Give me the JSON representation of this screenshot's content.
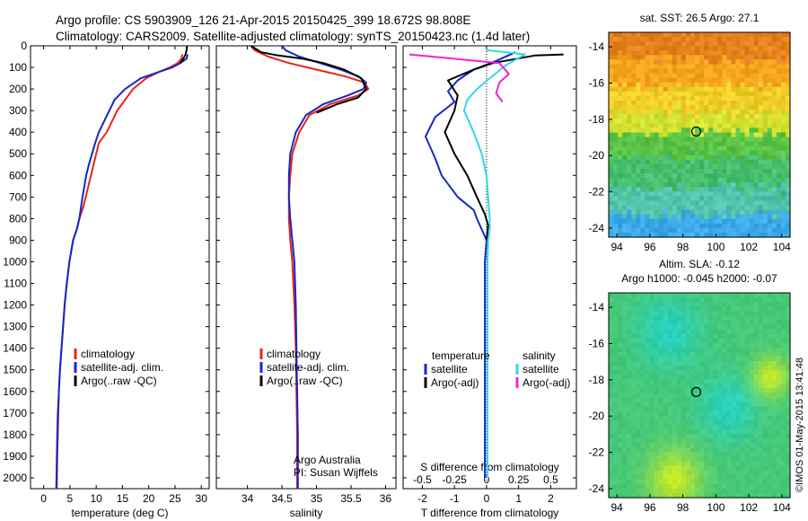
{
  "header": {
    "line1": "Argo profile: CS 5903909_126 21-Apr-2015 20150425_399 18.672S 98.808E",
    "line2": "Climatology: CARS2009. Satellite-adjusted climatology: synTS_20150423.nc (1.4d later)"
  },
  "footer_stamp": "©IMOS 01-May-2015 13:41:48",
  "colors": {
    "clim": "#e8231a",
    "sat": "#1428c8",
    "argo": "#000000",
    "sal_sat": "#33d6ea",
    "sal_argo": "#ee22dd"
  },
  "chart_data": [
    {
      "type": "line",
      "id": "temperature",
      "xlabel": "temperature (deg C)",
      "ylabel": "",
      "xlim": [
        -2.5,
        31.5
      ],
      "ylim": [
        2050,
        0
      ],
      "xticks": [
        0,
        5,
        10,
        15,
        20,
        25,
        30
      ],
      "yticks": [
        0,
        100,
        200,
        300,
        400,
        500,
        600,
        700,
        800,
        900,
        1000,
        1100,
        1200,
        1300,
        1400,
        1500,
        1600,
        1700,
        1800,
        1900,
        2000
      ],
      "legend": [
        "climatology",
        "satellite-adj. clim.",
        "Argo(..raw -QC)"
      ],
      "series": [
        {
          "name": "climatology",
          "color": "#e8231a",
          "x": [
            26.4,
            26.2,
            25.5,
            24,
            22,
            19.5,
            17,
            15.5,
            14,
            13,
            12,
            10.5,
            10,
            9.5,
            9,
            8.5,
            8,
            7.5,
            6.8,
            6.3,
            5.6,
            4.9,
            4.4,
            4,
            3.7,
            3.4,
            3.1,
            2.9,
            2.8,
            2.7,
            2.6,
            2.5
          ],
          "y": [
            40,
            60,
            80,
            100,
            120,
            150,
            200,
            250,
            300,
            350,
            400,
            450,
            500,
            550,
            600,
            650,
            700,
            750,
            800,
            850,
            900,
            1000,
            1100,
            1200,
            1300,
            1400,
            1500,
            1600,
            1700,
            1800,
            1900,
            2050
          ]
        },
        {
          "name": "satellite-adj. clim.",
          "color": "#1428c8",
          "x": [
            27.4,
            27.2,
            26,
            24.5,
            22,
            18.5,
            15.5,
            13.5,
            12.5,
            11.5,
            10.5,
            9.8,
            9.2,
            8.6,
            8.1,
            7.4,
            6.8,
            6.3,
            5.6,
            4.9,
            4.4,
            4,
            3.7,
            3.4,
            3.1,
            2.9,
            2.7,
            2.6,
            2.5,
            2.4
          ],
          "y": [
            40,
            60,
            80,
            100,
            120,
            150,
            200,
            250,
            300,
            350,
            400,
            450,
            500,
            550,
            600,
            700,
            800,
            850,
            900,
            1000,
            1100,
            1200,
            1300,
            1400,
            1500,
            1600,
            1700,
            1800,
            1900,
            2050
          ]
        },
        {
          "name": "Argo(..raw -QC)",
          "color": "#000000",
          "x": [
            27.3,
            27.2,
            27.0,
            26.6,
            26
          ],
          "y": [
            0,
            20,
            40,
            60,
            80
          ]
        }
      ]
    },
    {
      "type": "line",
      "id": "salinity",
      "xlabel": "salinity",
      "xlim": [
        33.55,
        36.15
      ],
      "ylim": [
        2050,
        0
      ],
      "xticks": [
        34,
        34.5,
        35,
        35.5,
        36
      ],
      "xticklabels": [
        "34",
        "34.5",
        "35",
        "35.5",
        "36"
      ],
      "yticks": [
        0,
        100,
        200,
        300,
        400,
        500,
        600,
        700,
        800,
        900,
        1000,
        1100,
        1200,
        1300,
        1400,
        1500,
        1600,
        1700,
        1800,
        1900,
        2000
      ],
      "legend": [
        "climatology",
        "satellite-adj. clim.",
        "Argo(..raw -QC)"
      ],
      "annotation": [
        "Argo Australia",
        "PI: Susan Wijffels"
      ],
      "series": [
        {
          "name": "climatology",
          "color": "#e8231a",
          "x": [
            34.05,
            34.1,
            34.3,
            34.6,
            35,
            35.4,
            35.7,
            35.75,
            35.6,
            35.2,
            34.9,
            34.75,
            34.65,
            34.62,
            34.6,
            34.6,
            34.62,
            34.65,
            34.68,
            34.7,
            34.71,
            34.72,
            34.72,
            34.72
          ],
          "y": [
            0,
            20,
            50,
            80,
            110,
            140,
            170,
            200,
            230,
            270,
            320,
            400,
            500,
            600,
            700,
            800,
            900,
            1000,
            1200,
            1400,
            1600,
            1800,
            2000,
            2050
          ]
        },
        {
          "name": "satellite-adj. clim.",
          "color": "#1428c8",
          "x": [
            34.5,
            34.55,
            34.75,
            35.05,
            35.35,
            35.6,
            35.72,
            35.68,
            35.45,
            35.1,
            34.85,
            34.7,
            34.62,
            34.6,
            34.6,
            34.62,
            34.65,
            34.68,
            34.7,
            34.71,
            34.72,
            34.73,
            34.73,
            34.73
          ],
          "y": [
            0,
            20,
            50,
            80,
            110,
            140,
            170,
            200,
            230,
            270,
            320,
            400,
            500,
            600,
            700,
            800,
            900,
            1000,
            1200,
            1400,
            1600,
            1800,
            2000,
            2050
          ]
        },
        {
          "name": "Argo(..raw -QC)",
          "color": "#000000",
          "x": [
            34.05,
            34.2,
            34.45,
            34.8,
            35.1,
            35.4,
            35.65,
            35.72,
            35.6,
            35.3,
            35.0
          ],
          "y": [
            0,
            30,
            45,
            60,
            80,
            110,
            150,
            200,
            240,
            270,
            310
          ]
        }
      ]
    },
    {
      "type": "line",
      "id": "difference",
      "xlabel": "T difference from climatology",
      "xlabel_top": "S difference from climatology",
      "xlim": [
        -2.6,
        2.8
      ],
      "ylim": [
        2050,
        0
      ],
      "xticks": [
        -2,
        -1,
        0,
        1,
        2
      ],
      "xticks_top": [
        -0.5,
        -0.25,
        0,
        0.25,
        0.5
      ],
      "xticklabels_top": [
        "-0.5",
        "-0.25",
        "0",
        "0.25",
        "0.5"
      ],
      "yticks": [
        0,
        100,
        200,
        300,
        400,
        500,
        600,
        700,
        800,
        900,
        1000,
        1100,
        1200,
        1300,
        1400,
        1500,
        1600,
        1700,
        1800,
        1900,
        2000
      ],
      "legend_temperature": {
        "title": "temperature",
        "items": [
          "satellite",
          "Argo(-adj)"
        ]
      },
      "legend_salinity": {
        "title": "salinity",
        "items": [
          "satellite",
          "Argo(-adj)"
        ]
      },
      "series": [
        {
          "name": "temperature satellite",
          "color": "#1428c8",
          "x": [
            0.9,
            0.3,
            -0.4,
            -0.9,
            -1.2,
            -1.0,
            -1.6,
            -1.9,
            -1.6,
            -1.4,
            -0.9,
            -0.4,
            -0.3,
            -0.15,
            0.0,
            -0.05,
            -0.05,
            -0.05,
            -0.05,
            -0.05,
            -0.05
          ],
          "y": [
            30,
            70,
            110,
            160,
            210,
            260,
            330,
            420,
            520,
            600,
            700,
            760,
            800,
            850,
            900,
            1000,
            1200,
            1400,
            1600,
            1800,
            2000
          ]
        },
        {
          "name": "temperature Argo(-adj)",
          "color": "#000000",
          "x": [
            2.4,
            1.5,
            0.2,
            -0.4,
            -1.2,
            -0.9,
            -1.0,
            -1.3,
            -1.0,
            -0.6,
            -0.3,
            -0.05,
            0.05,
            0.0
          ],
          "y": [
            40,
            45,
            80,
            110,
            160,
            230,
            300,
            400,
            500,
            600,
            700,
            780,
            830,
            900
          ]
        },
        {
          "name": "salinity satellite",
          "color": "#33d6ea",
          "x": [
            0.0,
            1.2,
            0.6,
            0.1,
            -0.3,
            -0.6,
            -0.7,
            -0.4,
            -0.15,
            0.0,
            0.05,
            0.1,
            0.1,
            0.05,
            0.03,
            0.03,
            0.03,
            0.03,
            0.03,
            0.03
          ],
          "y": [
            20,
            40,
            90,
            150,
            200,
            250,
            300,
            400,
            500,
            600,
            700,
            800,
            850,
            900,
            1000,
            1200,
            1400,
            1600,
            1800,
            2000
          ]
        },
        {
          "name": "salinity Argo(-adj)",
          "color": "#ee22dd",
          "x": [
            -2.4,
            -1.0,
            0.4,
            0.7,
            0.4,
            0.3,
            0.5
          ],
          "y": [
            40,
            60,
            80,
            130,
            170,
            220,
            260
          ]
        }
      ]
    },
    {
      "type": "heatmap",
      "id": "sst",
      "title": "sat. SST: 26.5 Argo: 27.1",
      "xlim": [
        93.5,
        104.5
      ],
      "ylim": [
        -24.5,
        -13.2
      ],
      "xticks": [
        94,
        96,
        98,
        100,
        102,
        104
      ],
      "yticks": [
        -14,
        -16,
        -18,
        -20,
        -22,
        -24
      ],
      "marker": [
        98.808,
        -18.672
      ]
    },
    {
      "type": "heatmap",
      "id": "sla",
      "title": "Altim. SLA: -0.12",
      "subtitle": "Argo h1000: -0.045 h2000: -0.07",
      "xlim": [
        93.5,
        104.5
      ],
      "ylim": [
        -24.5,
        -13.2
      ],
      "xticks": [
        94,
        96,
        98,
        100,
        102,
        104
      ],
      "yticks": [
        -14,
        -16,
        -18,
        -20,
        -22,
        -24
      ],
      "marker": [
        98.808,
        -18.672
      ]
    }
  ]
}
